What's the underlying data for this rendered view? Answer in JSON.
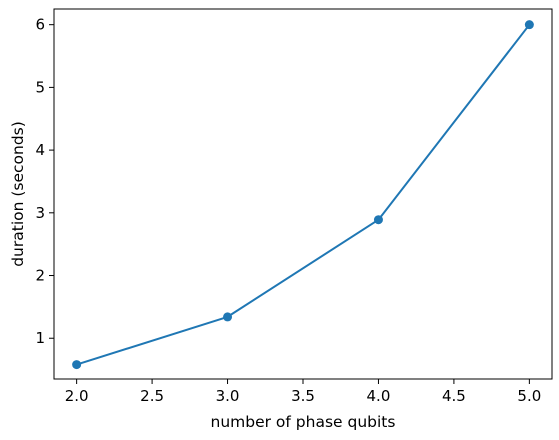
{
  "chart_data": {
    "type": "line",
    "title": "",
    "xlabel": "number of phase qubits",
    "ylabel": "duration (seconds)",
    "x": [
      2.0,
      3.0,
      4.0,
      5.0
    ],
    "series": [
      {
        "values": [
          0.58,
          1.34,
          2.89,
          6.0
        ],
        "color": "#1f77b4",
        "marker": "circle"
      }
    ],
    "xlim": [
      1.85,
      5.15
    ],
    "ylim": [
      0.35,
      6.25
    ],
    "xticks": [
      2.0,
      2.5,
      3.0,
      3.5,
      4.0,
      4.5,
      5.0
    ],
    "xtick_labels": [
      "2.0",
      "2.5",
      "3.0",
      "3.5",
      "4.0",
      "4.5",
      "5.0"
    ],
    "yticks": [
      1,
      2,
      3,
      4,
      5,
      6
    ],
    "ytick_labels": [
      "1",
      "2",
      "3",
      "4",
      "5",
      "6"
    ],
    "grid": false,
    "legend": "none"
  }
}
